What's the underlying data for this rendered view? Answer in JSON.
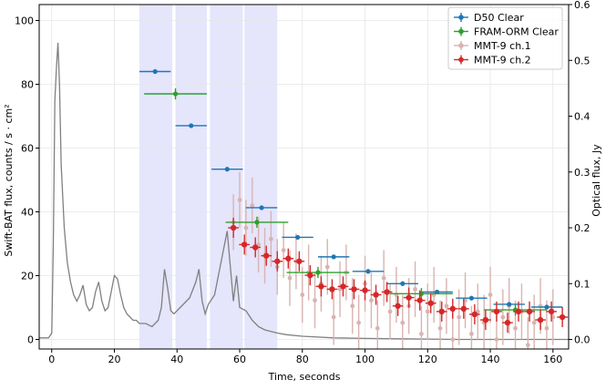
{
  "chart_data": {
    "type": "scatter",
    "xlabel": "Time, seconds",
    "ylabel_left": "Swift-BAT flux, counts / s · cm²",
    "ylabel_right": "Optical flux, Jy",
    "xlim": [
      -4,
      165
    ],
    "ylim_left": [
      -3,
      105
    ],
    "ylim_right": [
      -0.0171,
      0.6
    ],
    "x_ticks": [
      0,
      20,
      40,
      60,
      80,
      100,
      120,
      140,
      160
    ],
    "y_ticks_left": [
      0,
      20,
      40,
      60,
      80,
      100
    ],
    "y_ticks_right": [
      0.0,
      0.1,
      0.2,
      0.3,
      0.4,
      0.5,
      0.6
    ],
    "grid": true,
    "legend_position": "top-right",
    "shaded_intervals": [
      [
        28,
        38.5
      ],
      [
        39.5,
        49.5
      ],
      [
        50.5,
        61
      ],
      [
        61.5,
        72
      ]
    ],
    "colors": {
      "bat": "#808080",
      "d50": "#1f77b4",
      "fram": "#2ca02c",
      "mmt1": "#d8b4b0",
      "mmt2": "#d62728",
      "shade": "#dcdcfb"
    },
    "bat_lightcurve": {
      "name": "Swift-BAT",
      "x": [
        -4,
        -1,
        0,
        0.5,
        1,
        1.5,
        2,
        2.5,
        3,
        4,
        5,
        6,
        7,
        8,
        9,
        10,
        11,
        12,
        13,
        14,
        15,
        16,
        17,
        18,
        19,
        20,
        21,
        22,
        23,
        24,
        25,
        26,
        27,
        28,
        30,
        32,
        34,
        35,
        36,
        37,
        38,
        39,
        40,
        42,
        44,
        46,
        47,
        48,
        49,
        50,
        52,
        54,
        56,
        57,
        58,
        59,
        60,
        62,
        64,
        66,
        68,
        70,
        72,
        75,
        80,
        90,
        100,
        110,
        120,
        130,
        140,
        150,
        160,
        165
      ],
      "y": [
        0.5,
        0.5,
        2,
        30,
        75,
        85,
        93,
        80,
        55,
        35,
        24,
        18,
        14,
        12,
        14,
        17,
        11,
        9,
        10,
        15,
        18,
        12,
        9,
        10,
        15,
        20,
        19,
        14,
        10,
        8,
        7,
        6,
        6,
        5,
        5,
        4,
        6,
        10,
        22,
        16,
        9,
        8,
        9,
        11,
        13,
        18,
        22,
        12,
        8,
        11,
        14,
        24,
        34,
        23,
        12,
        20,
        10,
        9,
        6,
        4,
        3,
        2.5,
        2,
        1.5,
        1,
        0.5,
        0.3,
        0.2,
        0.1,
        0,
        0,
        0,
        0,
        0
      ]
    },
    "series": [
      {
        "name": "D50 Clear",
        "x": [
          33,
          44.5,
          56,
          67,
          78.5,
          90,
          101,
          112,
          123,
          134,
          146,
          158
        ],
        "xerr": [
          5,
          5,
          5,
          5,
          5,
          5,
          5,
          5,
          5,
          5,
          5,
          5
        ],
        "y": [
          0.48,
          0.383,
          0.305,
          0.236,
          0.183,
          0.148,
          0.122,
          0.1,
          0.085,
          0.074,
          0.063,
          0.058
        ],
        "yerr": [
          0.004,
          0.004,
          0.004,
          0.004,
          0.004,
          0.004,
          0.004,
          0.004,
          0.004,
          0.004,
          0.004,
          0.004
        ]
      },
      {
        "name": "FRAM-ORM Clear",
        "x": [
          39.5,
          65.5,
          85,
          118,
          148
        ],
        "xerr": [
          10,
          10,
          10,
          10,
          10
        ],
        "y": [
          0.44,
          0.21,
          0.12,
          0.082,
          0.053
        ],
        "yerr": [
          0.01,
          0.01,
          0.01,
          0.01,
          0.01
        ]
      },
      {
        "name": "MMT-9 ch.1",
        "x": [
          58,
          60,
          62,
          64,
          66,
          68,
          70,
          72,
          74,
          76,
          78,
          80,
          82,
          84,
          86,
          88,
          90,
          92,
          94,
          96,
          98,
          100,
          102,
          104,
          106,
          108,
          110,
          112,
          114,
          116,
          118,
          120,
          122,
          124,
          126,
          128,
          130,
          132,
          134,
          136,
          138,
          140,
          142,
          144,
          146,
          148,
          150,
          152,
          154,
          156,
          158,
          160
        ],
        "y": [
          0.21,
          0.25,
          0.2,
          0.24,
          0.17,
          0.15,
          0.18,
          0.13,
          0.16,
          0.11,
          0.14,
          0.08,
          0.12,
          0.07,
          0.1,
          0.13,
          0.04,
          0.09,
          0.12,
          0.06,
          0.03,
          0.1,
          0.07,
          0.02,
          0.11,
          0.05,
          0.08,
          0.03,
          0.06,
          0.09,
          0.01,
          0.05,
          0.08,
          0.02,
          0.06,
          0.0,
          0.04,
          0.07,
          0.01,
          0.05,
          0.03,
          0.08,
          0.0,
          0.04,
          0.06,
          0.02,
          0.05,
          -0.01,
          0.03,
          0.06,
          0.02,
          0.04
        ],
        "yerr": [
          0.05,
          0.05,
          0.05,
          0.05,
          0.05,
          0.05,
          0.05,
          0.05,
          0.05,
          0.05,
          0.05,
          0.05,
          0.05,
          0.05,
          0.05,
          0.05,
          0.05,
          0.05,
          0.05,
          0.05,
          0.05,
          0.05,
          0.05,
          0.05,
          0.05,
          0.05,
          0.05,
          0.05,
          0.05,
          0.05,
          0.05,
          0.05,
          0.05,
          0.05,
          0.05,
          0.05,
          0.05,
          0.05,
          0.05,
          0.05,
          0.05,
          0.05,
          0.05,
          0.05,
          0.05,
          0.05,
          0.05,
          0.05,
          0.05,
          0.05,
          0.05,
          0.05
        ]
      },
      {
        "name": "MMT-9 ch.2",
        "x": [
          58,
          61.5,
          65,
          68.5,
          72,
          75.5,
          79,
          82.5,
          86,
          89.5,
          93,
          96.5,
          100,
          103.5,
          107,
          110.5,
          114,
          117.5,
          121,
          124.5,
          128,
          131.5,
          135,
          138.5,
          142,
          145.5,
          149,
          152.5,
          156,
          159.5,
          163
        ],
        "xerr": [
          1.7,
          1.7,
          1.7,
          1.7,
          1.7,
          1.7,
          1.7,
          1.7,
          1.7,
          1.7,
          1.7,
          1.7,
          1.7,
          1.7,
          1.7,
          1.7,
          1.7,
          1.7,
          1.7,
          1.7,
          1.7,
          1.7,
          1.7,
          1.7,
          1.7,
          1.7,
          1.7,
          1.7,
          1.7,
          1.7,
          1.7
        ],
        "y": [
          0.2,
          0.17,
          0.165,
          0.15,
          0.14,
          0.145,
          0.14,
          0.115,
          0.095,
          0.09,
          0.095,
          0.09,
          0.088,
          0.08,
          0.085,
          0.06,
          0.075,
          0.07,
          0.065,
          0.05,
          0.055,
          0.055,
          0.045,
          0.035,
          0.05,
          0.03,
          0.05,
          0.05,
          0.035,
          0.05,
          0.04
        ],
        "yerr": [
          0.018,
          0.018,
          0.018,
          0.018,
          0.018,
          0.018,
          0.018,
          0.018,
          0.018,
          0.018,
          0.018,
          0.018,
          0.018,
          0.018,
          0.018,
          0.018,
          0.018,
          0.018,
          0.018,
          0.018,
          0.018,
          0.018,
          0.018,
          0.018,
          0.018,
          0.018,
          0.018,
          0.018,
          0.018,
          0.018,
          0.018
        ]
      }
    ]
  }
}
